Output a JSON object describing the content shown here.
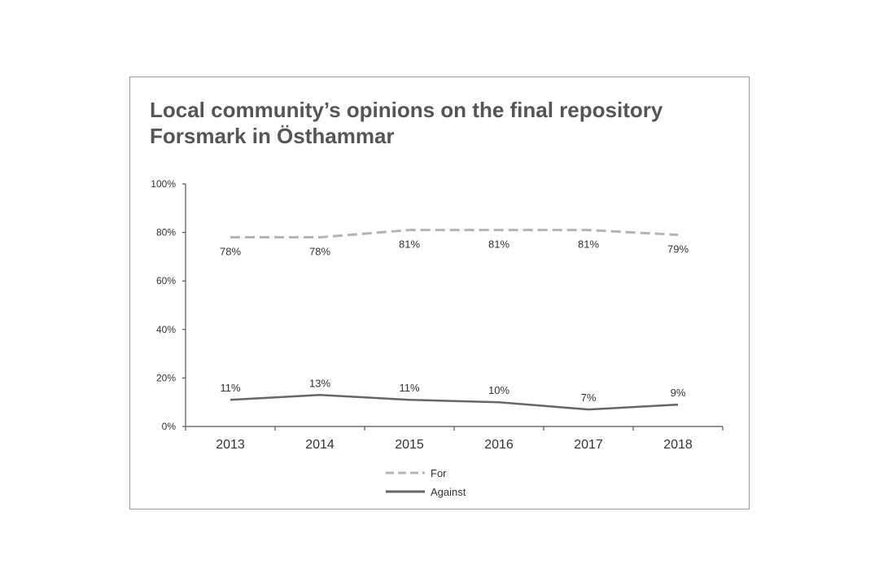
{
  "chart_data": {
    "type": "line",
    "title_lines": [
      "Local community’s opinions on the final repository",
      "Forsmark in Östhammar"
    ],
    "categories": [
      "2013",
      "2014",
      "2015",
      "2016",
      "2017",
      "2018"
    ],
    "series": [
      {
        "name": "For",
        "values": [
          78,
          78,
          81,
          81,
          81,
          79
        ],
        "labels": [
          "78%",
          "78%",
          "81%",
          "81%",
          "81%",
          "79%"
        ],
        "color": "#b4b4b4",
        "style": "dashed"
      },
      {
        "name": "Against",
        "values": [
          11,
          13,
          11,
          10,
          7,
          9
        ],
        "labels": [
          "11%",
          "13%",
          "11%",
          "10%",
          "7%",
          "9%"
        ],
        "color": "#666666",
        "style": "solid"
      }
    ],
    "yticks": [
      "0%",
      "20%",
      "40%",
      "60%",
      "80%",
      "100%"
    ],
    "ytick_values": [
      0,
      20,
      40,
      60,
      80,
      100
    ],
    "ylim": [
      0,
      100
    ],
    "xlabel": "",
    "ylabel": "",
    "grid": false,
    "legend_position": "bottom"
  }
}
